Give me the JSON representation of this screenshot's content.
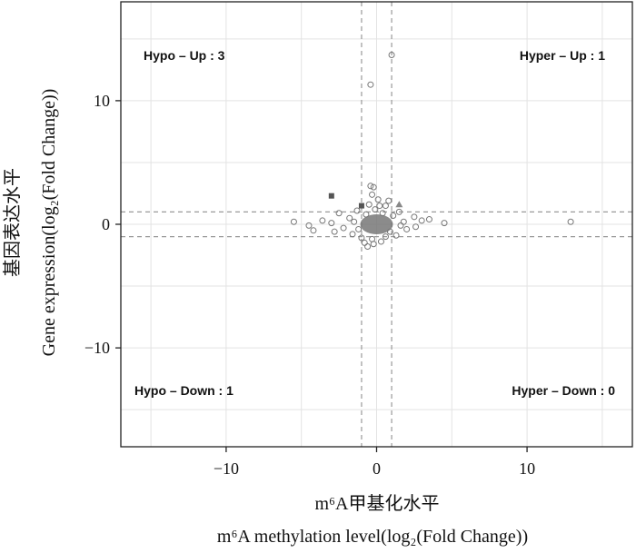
{
  "chart_data": {
    "type": "scatter",
    "xlabel_zh": "m⁶A甲基化水平",
    "xlabel_en": "m⁶A methylation level(log₂(Fold Change))",
    "ylabel_zh": "基因表达水平",
    "ylabel_en": "Gene expression(log₂(Fold Change))",
    "xlim": [
      -17,
      17
    ],
    "ylim": [
      -18,
      18
    ],
    "x_ticks": [
      -10,
      0,
      10
    ],
    "y_ticks": [
      -10,
      0,
      10
    ],
    "x_tick_labels": [
      "−10",
      "0",
      "10"
    ],
    "y_tick_labels": [
      "−10",
      "0",
      "10"
    ],
    "grid": true,
    "threshold_lines": {
      "x": [
        -1,
        1
      ],
      "y": [
        -1,
        1
      ]
    },
    "quadrant_labels": {
      "hypo_up": "Hypo – Up : 3",
      "hyper_up": "Hyper – Up : 1",
      "hypo_down": "Hypo – Down : 1",
      "hyper_down": "Hyper – Down : 0"
    },
    "colors": {
      "points": "#777777",
      "axis": "#222222",
      "grid": "#e3e3e3",
      "threshold": "#999999"
    },
    "series": [
      {
        "marker": "circle-open",
        "points": [
          [
            1.0,
            13.7
          ],
          [
            -0.4,
            11.3
          ],
          [
            12.9,
            0.2
          ],
          [
            4.5,
            0.1
          ],
          [
            3.5,
            0.4
          ],
          [
            2.5,
            0.6
          ],
          [
            -5.5,
            0.2
          ],
          [
            -4.5,
            -0.1
          ],
          [
            -4.2,
            -0.5
          ],
          [
            -3.6,
            0.3
          ],
          [
            -3.0,
            0.1
          ],
          [
            -2.5,
            0.9
          ],
          [
            -2.2,
            -0.3
          ],
          [
            -1.8,
            0.5
          ],
          [
            -1.6,
            -0.8
          ],
          [
            -1.3,
            1.1
          ],
          [
            -0.4,
            3.1
          ],
          [
            -0.2,
            3.0
          ],
          [
            -0.3,
            2.4
          ],
          [
            0.1,
            2.0
          ],
          [
            -0.5,
            1.6
          ],
          [
            0.8,
            1.9
          ],
          [
            0.6,
            1.5
          ],
          [
            1.3,
            -0.9
          ],
          [
            1.8,
            0.2
          ],
          [
            2.0,
            -0.4
          ],
          [
            2.6,
            -0.2
          ],
          [
            3.0,
            0.3
          ],
          [
            -0.8,
            -1.5
          ],
          [
            -0.6,
            -1.8
          ],
          [
            -0.2,
            -1.6
          ],
          [
            0.3,
            -1.4
          ],
          [
            -1.0,
            -1.1
          ],
          [
            0.6,
            -1.0
          ],
          [
            1.5,
            1.0
          ],
          [
            -2.8,
            -0.6
          ],
          [
            -0.1,
            1.2
          ],
          [
            0.4,
            0.9
          ],
          [
            -0.7,
            0.8
          ],
          [
            1.1,
            0.7
          ],
          [
            -1.2,
            -0.4
          ],
          [
            0.9,
            -0.6
          ],
          [
            -0.3,
            -1.2
          ],
          [
            0.2,
            1.5
          ],
          [
            -1.5,
            0.2
          ],
          [
            1.6,
            -0.1
          ]
        ]
      },
      {
        "marker": "square",
        "points": [
          [
            -3.0,
            2.3
          ],
          [
            -1.0,
            1.5
          ]
        ]
      },
      {
        "marker": "triangle",
        "points": [
          [
            1.5,
            1.6
          ]
        ]
      }
    ]
  }
}
